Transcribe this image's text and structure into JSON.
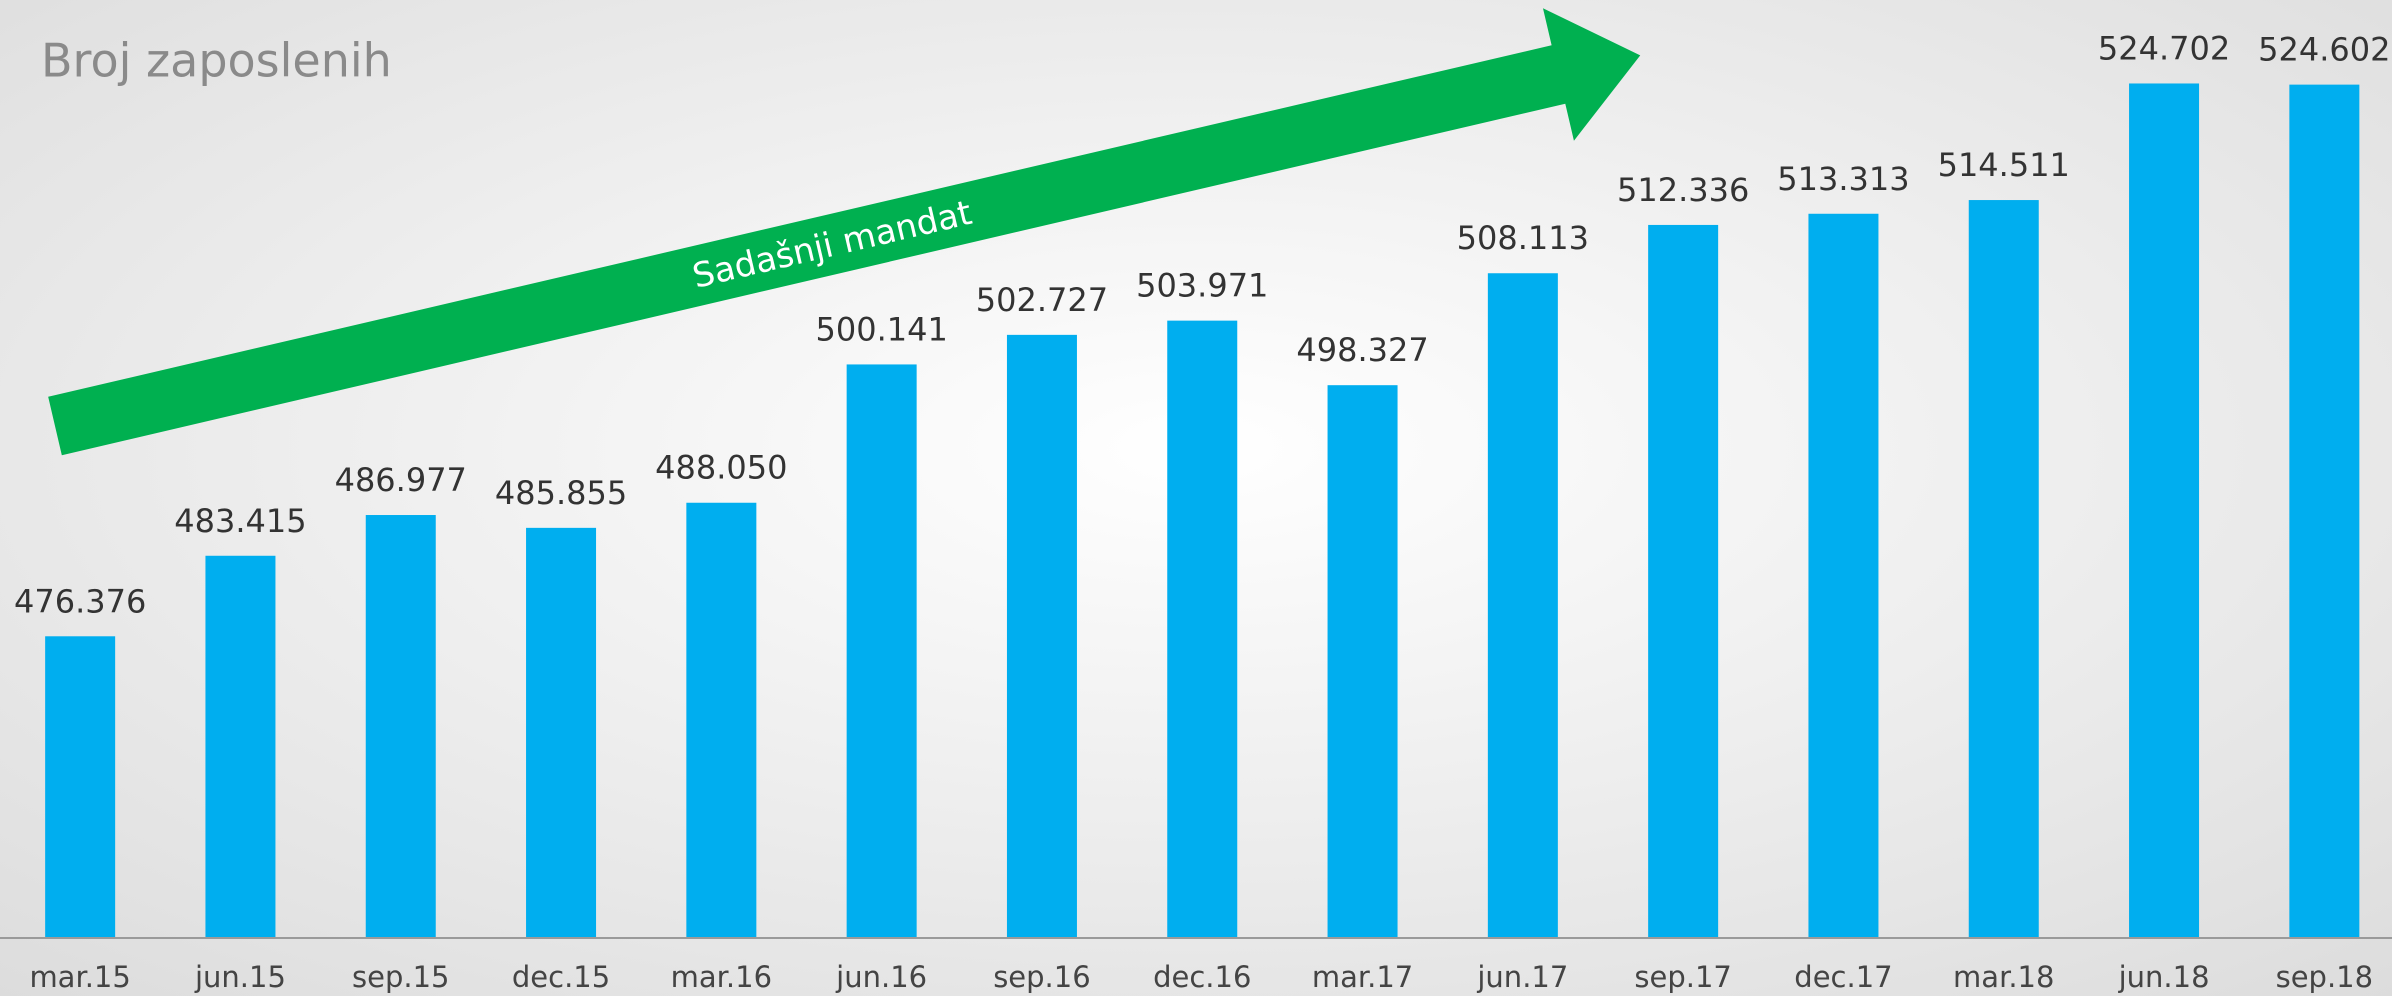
{
  "chart_data": {
    "type": "bar",
    "title": "Broj zaposlenih",
    "annotation": "Sadašnji mandat",
    "categories": [
      "mar.15",
      "jun.15",
      "sep.15",
      "dec.15",
      "mar.16",
      "jun.16",
      "sep.16",
      "dec.16",
      "mar.17",
      "jun.17",
      "sep.17",
      "dec.17",
      "mar.18",
      "jun.18",
      "sep.18"
    ],
    "values": [
      476376,
      483415,
      486977,
      485855,
      488050,
      500141,
      502727,
      503971,
      498327,
      508113,
      512336,
      513313,
      514511,
      524702,
      524602
    ],
    "value_labels": [
      "476.376",
      "483.415",
      "486.977",
      "485.855",
      "488.050",
      "500.141",
      "502.727",
      "503.971",
      "498.327",
      "508.113",
      "512.336",
      "513.313",
      "514.511",
      "524.702",
      "524.602"
    ],
    "color": "#00aeef",
    "ylim": [
      450000,
      532000
    ]
  }
}
